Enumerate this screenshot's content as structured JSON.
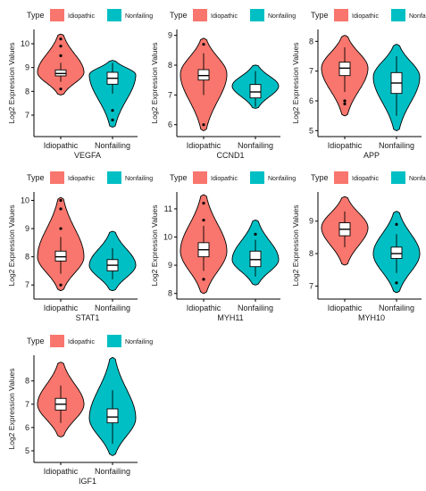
{
  "legend_title": "Type",
  "colors": {
    "Idiopathic": "#f8766d",
    "Nonfailing": "#00bfc4",
    "box": "#ffffff",
    "line": "#000000"
  },
  "chart_data": [
    {
      "type": "violin",
      "xlabel": "VEGFA",
      "ylabel": "Log2 Expression Values",
      "categories": [
        "Idiopathic",
        "Nonfailing"
      ],
      "legend": [
        "Idiopathic",
        "Nonfailing"
      ],
      "yticks": [
        7,
        8,
        9,
        10
      ],
      "ylim": [
        6.1,
        10.6
      ],
      "series": [
        {
          "name": "Idiopathic",
          "q1": 8.65,
          "median": 8.75,
          "q3": 8.9,
          "whisker_low": 8.4,
          "whisker_high": 9.2,
          "min": 7.85,
          "max": 10.4,
          "mode": 8.8,
          "outliers": [
            8.1,
            9.5,
            9.9,
            10.2
          ]
        },
        {
          "name": "Nonfailing",
          "q1": 8.3,
          "median": 8.55,
          "q3": 8.8,
          "whisker_low": 7.9,
          "whisker_high": 9.2,
          "min": 6.5,
          "max": 9.3,
          "mode": 8.7,
          "outliers": [
            7.2,
            6.8
          ]
        }
      ]
    },
    {
      "type": "violin",
      "xlabel": "CCND1",
      "ylabel": "Log2 Expression Values",
      "categories": [
        "Idiopathic",
        "Nonfailing"
      ],
      "legend": [
        "Idiopathic",
        "Nonfailing"
      ],
      "yticks": [
        6,
        7,
        8,
        9
      ],
      "ylim": [
        5.6,
        9.2
      ],
      "series": [
        {
          "name": "Idiopathic",
          "q1": 7.5,
          "median": 7.65,
          "q3": 7.85,
          "whisker_low": 7.0,
          "whisker_high": 8.4,
          "min": 5.8,
          "max": 8.9,
          "mode": 7.7,
          "outliers": [
            6.0,
            8.7
          ]
        },
        {
          "name": "Nonfailing",
          "q1": 6.9,
          "median": 7.1,
          "q3": 7.35,
          "whisker_low": 6.6,
          "whisker_high": 7.8,
          "min": 6.55,
          "max": 8.0,
          "mode": 7.3,
          "outliers": []
        }
      ]
    },
    {
      "type": "violin",
      "xlabel": "APP",
      "ylabel": "Log2 Expression Values",
      "categories": [
        "Idiopathic",
        "Nonfailing"
      ],
      "legend": [
        "Idiopathic",
        "Nonfailing"
      ],
      "yticks": [
        5,
        6,
        7,
        8
      ],
      "ylim": [
        4.8,
        8.4
      ],
      "series": [
        {
          "name": "Idiopathic",
          "q1": 6.85,
          "median": 7.1,
          "q3": 7.3,
          "whisker_low": 6.3,
          "whisker_high": 7.8,
          "min": 5.5,
          "max": 8.2,
          "mode": 7.1,
          "outliers": [
            6.0,
            5.9
          ]
        },
        {
          "name": "Nonfailing",
          "q1": 6.25,
          "median": 6.6,
          "q3": 6.95,
          "whisker_low": 5.5,
          "whisker_high": 7.5,
          "min": 5.0,
          "max": 7.9,
          "mode": 6.8,
          "outliers": []
        }
      ]
    },
    {
      "type": "violin",
      "xlabel": "STAT1",
      "ylabel": "Log2 Expression Values",
      "categories": [
        "Idiopathic",
        "Nonfailing"
      ],
      "legend": [
        "Idiopathic",
        "Nonfailing"
      ],
      "yticks": [
        7,
        8,
        9,
        10
      ],
      "ylim": [
        6.5,
        10.3
      ],
      "series": [
        {
          "name": "Idiopathic",
          "q1": 7.85,
          "median": 8.0,
          "q3": 8.2,
          "whisker_low": 7.4,
          "whisker_high": 8.7,
          "min": 6.8,
          "max": 10.1,
          "mode": 8.0,
          "outliers": [
            7.0,
            9.0,
            9.7,
            10.0
          ]
        },
        {
          "name": "Nonfailing",
          "q1": 7.5,
          "median": 7.7,
          "q3": 7.9,
          "whisker_low": 7.2,
          "whisker_high": 8.3,
          "min": 6.8,
          "max": 8.9,
          "mode": 7.7,
          "outliers": []
        }
      ]
    },
    {
      "type": "violin",
      "xlabel": "MYH11",
      "ylabel": "Log2 Expression Values",
      "categories": [
        "Idiopathic",
        "Nonfailing"
      ],
      "legend": [
        "Idiopathic",
        "Nonfailing"
      ],
      "yticks": [
        8,
        9,
        10,
        11
      ],
      "ylim": [
        7.8,
        11.6
      ],
      "series": [
        {
          "name": "Idiopathic",
          "q1": 9.3,
          "median": 9.55,
          "q3": 9.8,
          "whisker_low": 8.8,
          "whisker_high": 10.4,
          "min": 8.0,
          "max": 11.5,
          "mode": 9.5,
          "outliers": [
            8.5,
            10.6,
            11.2
          ]
        },
        {
          "name": "Nonfailing",
          "q1": 8.95,
          "median": 9.2,
          "q3": 9.5,
          "whisker_low": 8.6,
          "whisker_high": 9.9,
          "min": 8.3,
          "max": 10.6,
          "mode": 9.2,
          "outliers": [
            10.1
          ]
        }
      ]
    },
    {
      "type": "violin",
      "xlabel": "MYH10",
      "ylabel": "Log2 Expression Values",
      "categories": [
        "Idiopathic",
        "Nonfailing"
      ],
      "legend": [
        "Idiopathic",
        "Nonfailing"
      ],
      "yticks": [
        7,
        8,
        9
      ],
      "ylim": [
        6.6,
        9.9
      ],
      "series": [
        {
          "name": "Idiopathic",
          "q1": 8.55,
          "median": 8.75,
          "q3": 8.95,
          "whisker_low": 8.2,
          "whisker_high": 9.3,
          "min": 7.65,
          "max": 9.75,
          "mode": 8.8,
          "outliers": []
        },
        {
          "name": "Nonfailing",
          "q1": 7.85,
          "median": 8.0,
          "q3": 8.2,
          "whisker_low": 7.4,
          "whisker_high": 8.6,
          "min": 6.8,
          "max": 9.3,
          "mode": 8.0,
          "outliers": [
            7.1,
            8.9
          ]
        }
      ]
    },
    {
      "type": "violin",
      "xlabel": "IGF1",
      "ylabel": "Log2 Expression Values",
      "categories": [
        "Idiopathic",
        "Nonfailing"
      ],
      "legend": [
        "Idiopathic",
        "Nonfailing"
      ],
      "yticks": [
        5,
        6,
        7,
        8
      ],
      "ylim": [
        4.5,
        9.1
      ],
      "series": [
        {
          "name": "Idiopathic",
          "q1": 6.75,
          "median": 7.0,
          "q3": 7.25,
          "whisker_low": 6.2,
          "whisker_high": 7.8,
          "min": 5.6,
          "max": 8.8,
          "mode": 7.0,
          "outliers": []
        },
        {
          "name": "Nonfailing",
          "q1": 6.2,
          "median": 6.45,
          "q3": 6.8,
          "whisker_low": 5.3,
          "whisker_high": 7.6,
          "min": 4.8,
          "max": 9.0,
          "mode": 6.4,
          "outliers": []
        }
      ]
    }
  ]
}
